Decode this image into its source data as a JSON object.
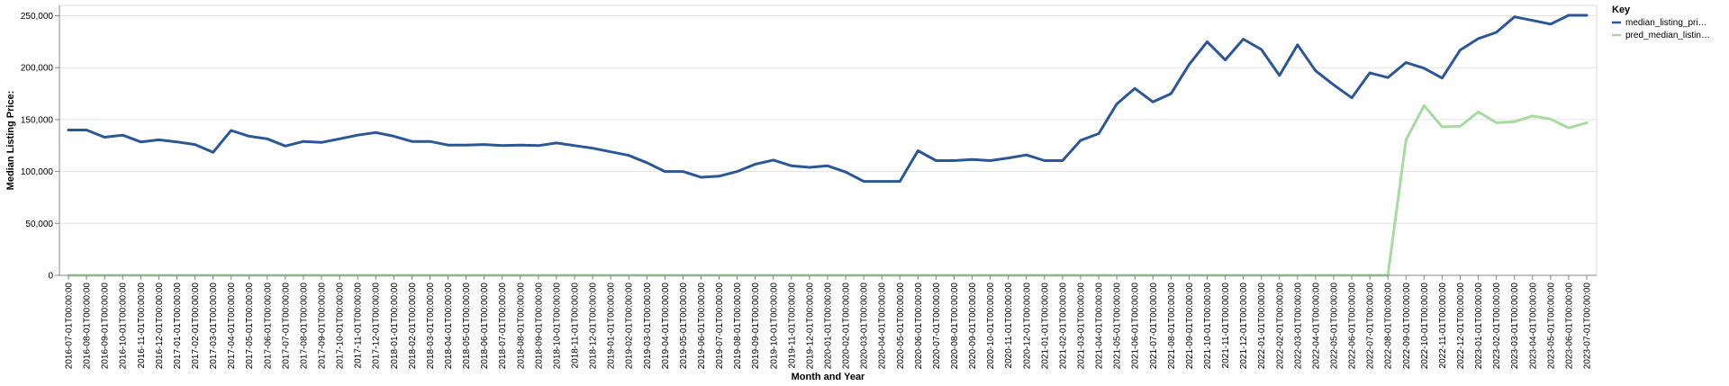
{
  "chart_data": {
    "type": "line",
    "xlabel": "Month and Year",
    "ylabel": "Median Listing Price:",
    "ylim": [
      0,
      260000
    ],
    "yticks": [
      0,
      50000,
      100000,
      150000,
      200000,
      250000
    ],
    "ytick_labels": [
      "0",
      "50,000",
      "100,000",
      "150,000",
      "200,000",
      "250,000"
    ],
    "grid": true,
    "legend": {
      "title": "Key",
      "placement": "top-right",
      "items": [
        {
          "label": "median_listing_pri…",
          "color": "#2b5797"
        },
        {
          "label": "pred_median_listin…",
          "color": "#a6dba0"
        }
      ]
    },
    "x": [
      "2016-07-01T00:00:00",
      "2016-08-01T00:00:00",
      "2016-09-01T00:00:00",
      "2016-10-01T00:00:00",
      "2016-11-01T00:00:00",
      "2016-12-01T00:00:00",
      "2017-01-01T00:00:00",
      "2017-02-01T00:00:00",
      "2017-03-01T00:00:00",
      "2017-04-01T00:00:00",
      "2017-05-01T00:00:00",
      "2017-06-01T00:00:00",
      "2017-07-01T00:00:00",
      "2017-08-01T00:00:00",
      "2017-09-01T00:00:00",
      "2017-10-01T00:00:00",
      "2017-11-01T00:00:00",
      "2017-12-01T00:00:00",
      "2018-01-01T00:00:00",
      "2018-02-01T00:00:00",
      "2018-03-01T00:00:00",
      "2018-04-01T00:00:00",
      "2018-05-01T00:00:00",
      "2018-06-01T00:00:00",
      "2018-07-01T00:00:00",
      "2018-08-01T00:00:00",
      "2018-09-01T00:00:00",
      "2018-10-01T00:00:00",
      "2018-11-01T00:00:00",
      "2018-12-01T00:00:00",
      "2019-01-01T00:00:00",
      "2019-02-01T00:00:00",
      "2019-03-01T00:00:00",
      "2019-04-01T00:00:00",
      "2019-05-01T00:00:00",
      "2019-06-01T00:00:00",
      "2019-07-01T00:00:00",
      "2019-08-01T00:00:00",
      "2019-09-01T00:00:00",
      "2019-10-01T00:00:00",
      "2019-11-01T00:00:00",
      "2019-12-01T00:00:00",
      "2020-01-01T00:00:00",
      "2020-02-01T00:00:00",
      "2020-03-01T00:00:00",
      "2020-04-01T00:00:00",
      "2020-05-01T00:00:00",
      "2020-06-01T00:00:00",
      "2020-07-01T00:00:00",
      "2020-08-01T00:00:00",
      "2020-09-01T00:00:00",
      "2020-10-01T00:00:00",
      "2020-11-01T00:00:00",
      "2020-12-01T00:00:00",
      "2021-01-01T00:00:00",
      "2021-02-01T00:00:00",
      "2021-03-01T00:00:00",
      "2021-04-01T00:00:00",
      "2021-05-01T00:00:00",
      "2021-06-01T00:00:00",
      "2021-07-01T00:00:00",
      "2021-08-01T00:00:00",
      "2021-09-01T00:00:00",
      "2021-10-01T00:00:00",
      "2021-11-01T00:00:00",
      "2021-12-01T00:00:00",
      "2022-01-01T00:00:00",
      "2022-02-01T00:00:00",
      "2022-03-01T00:00:00",
      "2022-04-01T00:00:00",
      "2022-05-01T00:00:00",
      "2022-06-01T00:00:00",
      "2022-07-01T00:00:00",
      "2022-08-01T00:00:00",
      "2022-09-01T00:00:00",
      "2022-10-01T00:00:00",
      "2022-11-01T00:00:00",
      "2022-12-01T00:00:00",
      "2023-01-01T00:00:00",
      "2023-02-01T00:00:00",
      "2023-03-01T00:00:00",
      "2023-04-01T00:00:00",
      "2023-05-01T00:00:00",
      "2023-06-01T00:00:00",
      "2023-07-01T00:00:00"
    ],
    "series": [
      {
        "name": "median_listing_pri…",
        "color": "#2b5797",
        "values": [
          140000,
          140000,
          133000,
          135000,
          128500,
          130500,
          128500,
          126000,
          118500,
          139500,
          134000,
          131500,
          124500,
          129000,
          128000,
          131500,
          135000,
          137500,
          134000,
          129000,
          129000,
          125500,
          125500,
          126000,
          125000,
          125500,
          125000,
          127500,
          125000,
          122500,
          119000,
          115500,
          108500,
          100000,
          100000,
          94500,
          95500,
          100000,
          107000,
          111000,
          105500,
          104000,
          105500,
          99500,
          90500,
          90500,
          90500,
          120000,
          110500,
          110500,
          111500,
          110500,
          113000,
          116000,
          110500,
          110500,
          130000,
          136500,
          165000,
          180000,
          167000,
          175000,
          203000,
          225000,
          207500,
          227500,
          217500,
          192500,
          222000,
          197000,
          183500,
          171000,
          195000,
          190500,
          205000,
          199500,
          190000,
          217000,
          228000,
          234000,
          249000,
          245500,
          242000,
          250500,
          250500
        ]
      },
      {
        "name": "pred_median_listin…",
        "color": "#a6dba0",
        "values": [
          0,
          0,
          0,
          0,
          0,
          0,
          0,
          0,
          0,
          0,
          0,
          0,
          0,
          0,
          0,
          0,
          0,
          0,
          0,
          0,
          0,
          0,
          0,
          0,
          0,
          0,
          0,
          0,
          0,
          0,
          0,
          0,
          0,
          0,
          0,
          0,
          0,
          0,
          0,
          0,
          0,
          0,
          0,
          0,
          0,
          0,
          0,
          0,
          0,
          0,
          0,
          0,
          0,
          0,
          0,
          0,
          0,
          0,
          0,
          0,
          0,
          0,
          0,
          0,
          0,
          0,
          0,
          0,
          0,
          0,
          0,
          0,
          0,
          0,
          130500,
          163500,
          143000,
          143500,
          157500,
          147000,
          148000,
          153500,
          150500,
          142000,
          147000
        ]
      }
    ]
  }
}
